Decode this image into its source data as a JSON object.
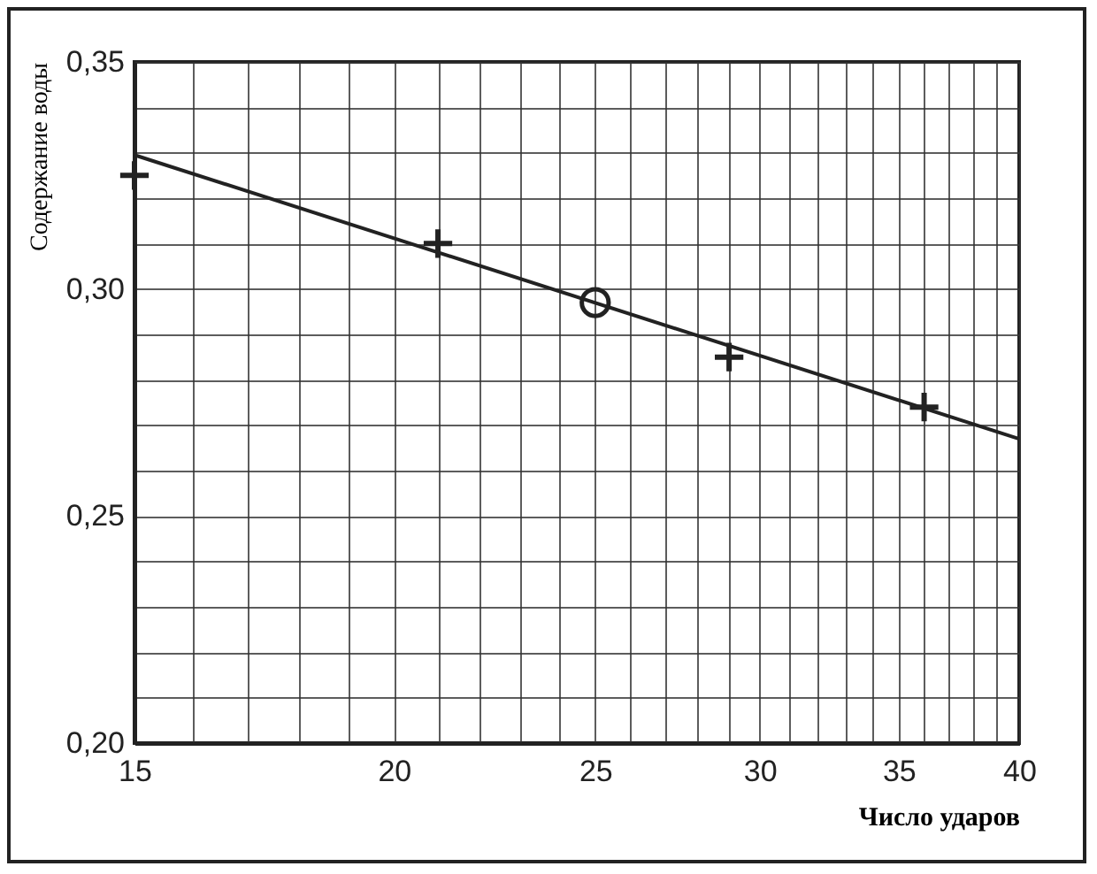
{
  "chart_data": {
    "type": "scatter",
    "xlabel": "Число ударов",
    "ylabel": "Содержание воды",
    "log": "x",
    "grid": true,
    "xlim": [
      15,
      40
    ],
    "ylim": [
      0.2,
      0.35
    ],
    "xticks": [
      15,
      {
        "value": 16,
        "label": null
      },
      {
        "value": 17,
        "label": null
      },
      {
        "value": 18,
        "label": null
      },
      {
        "value": 19,
        "label": null
      },
      20,
      {
        "value": 21,
        "label": null
      },
      {
        "value": 22,
        "label": null
      },
      {
        "value": 23,
        "label": null
      },
      {
        "value": 24,
        "label": null
      },
      25,
      {
        "value": 26,
        "label": null
      },
      {
        "value": 27,
        "label": null
      },
      {
        "value": 28,
        "label": null
      },
      {
        "value": 29,
        "label": null
      },
      30,
      {
        "value": 31,
        "label": null
      },
      {
        "value": 32,
        "label": null
      },
      {
        "value": 33,
        "label": null
      },
      {
        "value": 34,
        "label": null
      },
      35,
      {
        "value": 36,
        "label": null
      },
      {
        "value": 37,
        "label": null
      },
      {
        "value": 38,
        "label": null
      },
      {
        "value": 39,
        "label": null
      },
      40
    ],
    "yticks": [
      {
        "value": 0.2,
        "label": "0,20"
      },
      {
        "value": 0.21,
        "label": null
      },
      {
        "value": 0.22,
        "label": null
      },
      {
        "value": 0.23,
        "label": null
      },
      {
        "value": 0.24,
        "label": null
      },
      {
        "value": 0.25,
        "label": "0,25"
      },
      {
        "value": 0.26,
        "label": null
      },
      {
        "value": 0.27,
        "label": null
      },
      {
        "value": 0.28,
        "label": null
      },
      {
        "value": 0.29,
        "label": null
      },
      {
        "value": 0.3,
        "label": "0,30"
      },
      {
        "value": 0.31,
        "label": null
      },
      {
        "value": 0.32,
        "label": null
      },
      {
        "value": 0.33,
        "label": null
      },
      {
        "value": 0.34,
        "label": null
      },
      {
        "value": 0.35,
        "label": "0,35"
      }
    ],
    "series": [
      {
        "type": "line",
        "color": "#222222",
        "line_style": "solid",
        "marker": "none",
        "x": [
          15,
          40
        ],
        "values": [
          0.3295,
          0.267
        ]
      },
      {
        "color": "#222222",
        "marker": "cross",
        "x": [
          15,
          21,
          29,
          36
        ],
        "values": [
          0.325,
          0.31,
          0.285,
          0.274
        ]
      },
      {
        "color": "#222222",
        "marker": "circle",
        "x": [
          25
        ],
        "values": [
          0.297
        ]
      }
    ]
  }
}
